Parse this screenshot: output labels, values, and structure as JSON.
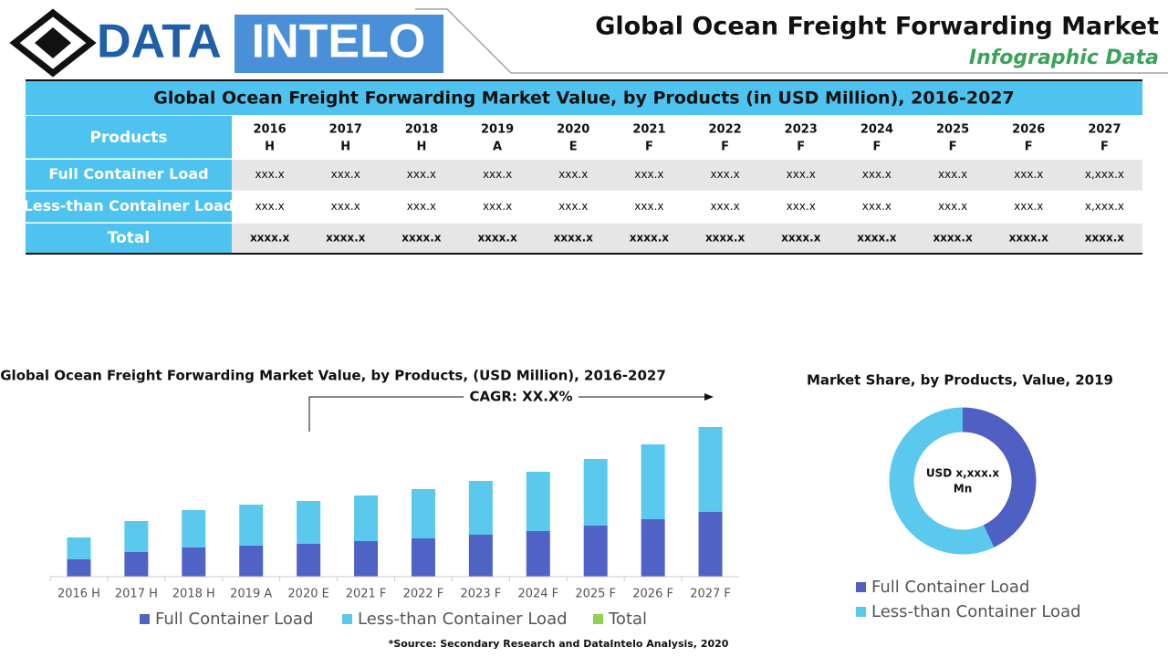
{
  "header": {
    "logo_left": "DATA",
    "logo_right": "INTELO",
    "title": "Global Ocean Freight Forwarding Market",
    "subtitle": "Infographic Data"
  },
  "table": {
    "title": "Global Ocean Freight Forwarding Market Value, by Products (in USD Million), 2016-2027",
    "corner": "Products",
    "columns": [
      {
        "year": "2016",
        "status": "H"
      },
      {
        "year": "2017",
        "status": "H"
      },
      {
        "year": "2018",
        "status": "H"
      },
      {
        "year": "2019",
        "status": "A"
      },
      {
        "year": "2020",
        "status": "E"
      },
      {
        "year": "2021",
        "status": "F"
      },
      {
        "year": "2022",
        "status": "F"
      },
      {
        "year": "2023",
        "status": "F"
      },
      {
        "year": "2024",
        "status": "F"
      },
      {
        "year": "2025",
        "status": "F"
      },
      {
        "year": "2026",
        "status": "F"
      },
      {
        "year": "2027",
        "status": "F"
      }
    ],
    "rows": [
      {
        "label": "Full Container Load",
        "cells": [
          "xxx.x",
          "xxx.x",
          "xxx.x",
          "xxx.x",
          "xxx.x",
          "xxx.x",
          "xxx.x",
          "xxx.x",
          "xxx.x",
          "xxx.x",
          "xxx.x",
          "x,xxx.x"
        ]
      },
      {
        "label": "Less-than Container Load",
        "cells": [
          "xxx.x",
          "xxx.x",
          "xxx.x",
          "xxx.x",
          "xxx.x",
          "xxx.x",
          "xxx.x",
          "xxx.x",
          "xxx.x",
          "xxx.x",
          "xxx.x",
          "x,xxx.x"
        ]
      },
      {
        "label": "Total",
        "cells": [
          "xxxx.x",
          "xxxx.x",
          "xxxx.x",
          "xxxx.x",
          "xxxx.x",
          "xxxx.x",
          "xxxx.x",
          "xxxx.x",
          "xxxx.x",
          "xxxx.x",
          "xxxx.x",
          "xxxx.x"
        ]
      }
    ]
  },
  "chart_data": [
    {
      "type": "bar",
      "stacked": true,
      "title": "Global Ocean Freight Forwarding Market Value, by Products, (USD Million), 2016-2027",
      "annotation": "CAGR: XX.X%",
      "categories": [
        "2016 H",
        "2017 H",
        "2018 H",
        "2019 A",
        "2020 E",
        "2021 F",
        "2022 F",
        "2023 F",
        "2024 F",
        "2025 F",
        "2026 F",
        "2027 F"
      ],
      "series": [
        {
          "name": "Full Container Load",
          "color": "#4f63c4",
          "values": [
            19,
            27,
            32,
            34,
            36,
            39,
            42,
            46,
            50,
            56,
            63,
            71
          ]
        },
        {
          "name": "Less-than Container Load",
          "color": "#5bc8ee",
          "values": [
            24,
            34,
            41,
            45,
            47,
            50,
            54,
            59,
            65,
            73,
            82,
            93
          ]
        },
        {
          "name": "Total",
          "color": "#92d050",
          "values": [
            null,
            null,
            null,
            null,
            null,
            null,
            null,
            null,
            null,
            null,
            null,
            null
          ]
        }
      ],
      "ylim": [
        0,
        170
      ]
    },
    {
      "type": "pie",
      "title": "Market Share, by Products, Value, 2019",
      "categories": [
        "Full Container Load",
        "Less-than Container Load"
      ],
      "values": [
        43,
        57
      ],
      "colors": [
        "#4f5fc2",
        "#5bc8ee"
      ],
      "center_label": [
        "USD x,xxx.x",
        "Mn"
      ]
    }
  ],
  "source": "*Source: Secondary Research and DataIntelo Analysis, 2020"
}
